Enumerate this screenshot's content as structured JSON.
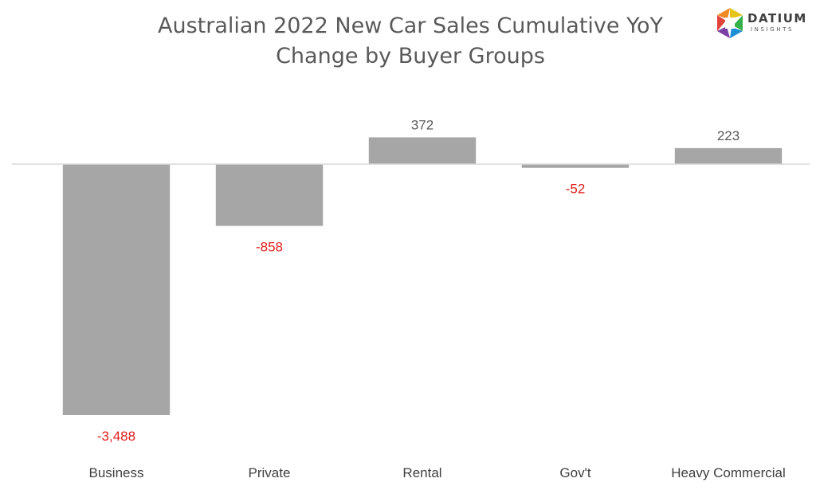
{
  "title_lines": [
    "Australian 2022 New Car Sales Cumulative YoY",
    "Change by Buyer Groups"
  ],
  "logo": {
    "word": "DATIUM",
    "sub": "INSIGHTS",
    "colors": [
      "#e8c31a",
      "#36b04a",
      "#1d8fd6",
      "#7a3fa5",
      "#e0433a"
    ]
  },
  "colors": {
    "bar": "#a6a6a6",
    "positive_label": "#595959",
    "negative_label": "#e0201b",
    "axis": "#d9d9d9",
    "category_label": "#404040"
  },
  "chart_data": {
    "type": "bar",
    "title": "Australian 2022 New Car Sales Cumulative YoY Change by Buyer Groups",
    "categories": [
      "Business",
      "Private",
      "Rental",
      "Gov't",
      "Heavy Commercial"
    ],
    "values": [
      -3488,
      -858,
      372,
      -52,
      223
    ],
    "data_labels": [
      "-3,488",
      "-858",
      "372",
      "-52",
      "223"
    ],
    "xlabel": "",
    "ylabel": "",
    "ylim": [
      -3700,
      700
    ],
    "grid": false,
    "legend": "none"
  }
}
